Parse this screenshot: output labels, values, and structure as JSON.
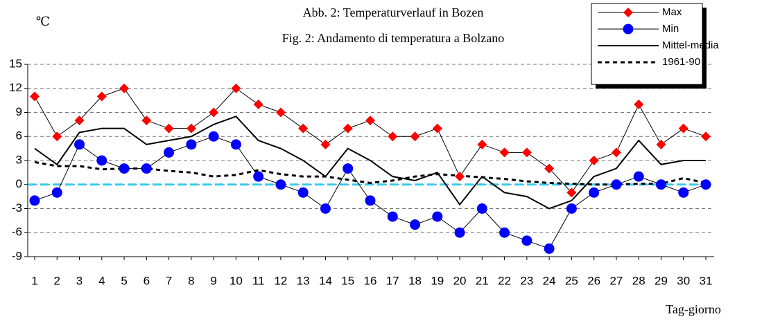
{
  "chart_data": {
    "type": "line",
    "title": "Abb. 2: Temperaturverlauf in Bozen",
    "subtitle": "Fig. 2: Andamento di temperatura a Bolzano",
    "y_label": "℃",
    "x_label": "Tag-giorno",
    "categories": [
      "1",
      "2",
      "3",
      "4",
      "5",
      "6",
      "7",
      "8",
      "9",
      "10",
      "11",
      "12",
      "13",
      "14",
      "15",
      "16",
      "17",
      "18",
      "19",
      "20",
      "21",
      "22",
      "23",
      "24",
      "25",
      "26",
      "27",
      "28",
      "29",
      "30",
      "31"
    ],
    "series": [
      {
        "name": "Max",
        "color": "#ff0000",
        "marker": "diamond",
        "dash": false,
        "width": 1,
        "values": [
          11,
          6,
          8,
          11,
          12,
          8,
          7,
          7,
          9,
          12,
          10,
          9,
          7,
          5,
          7,
          8,
          6,
          6,
          7,
          1,
          5,
          4,
          4,
          2,
          -1,
          3,
          4,
          10,
          5,
          7,
          6
        ]
      },
      {
        "name": "Min",
        "color": "#0000ff",
        "marker": "circle",
        "dash": false,
        "width": 1,
        "values": [
          -2,
          -1,
          5,
          3,
          2,
          2,
          4,
          5,
          6,
          5,
          1,
          0,
          -1,
          -3,
          2,
          -2,
          -4,
          -5,
          -4,
          -6,
          -3,
          -6,
          -7,
          -8,
          -3,
          -1,
          0,
          1,
          0,
          -1,
          0
        ]
      },
      {
        "name": "Mittel-media",
        "color": "#000000",
        "marker": null,
        "dash": false,
        "width": 2,
        "values": [
          4.5,
          2.5,
          6.5,
          7,
          7,
          5,
          5.5,
          6,
          7.5,
          8.5,
          5.5,
          4.5,
          3,
          1,
          4.5,
          3,
          1,
          0.5,
          1.5,
          -2.5,
          1,
          -1,
          -1.5,
          -3,
          -2,
          1,
          2,
          5.5,
          2.5,
          3,
          3
        ]
      },
      {
        "name": "1961-90",
        "color": "#000000",
        "marker": null,
        "dash": true,
        "width": 3,
        "values": [
          2.8,
          2.3,
          2.3,
          1.9,
          2,
          2,
          1.7,
          1.5,
          1,
          1.2,
          1.8,
          1.3,
          1,
          1,
          0.6,
          0.2,
          0.5,
          1,
          1.3,
          1.1,
          0.9,
          0.7,
          0.4,
          0.2,
          0.1,
          0,
          0,
          0.1,
          0.1,
          0.8,
          0.2
        ]
      }
    ],
    "ylim": [
      -9,
      15
    ],
    "yticks": [
      -9,
      -6,
      -3,
      0,
      3,
      6,
      9,
      12,
      15
    ],
    "grid": true,
    "hline": {
      "value": 0,
      "color": "#33ccee"
    },
    "legend": "top-right"
  }
}
